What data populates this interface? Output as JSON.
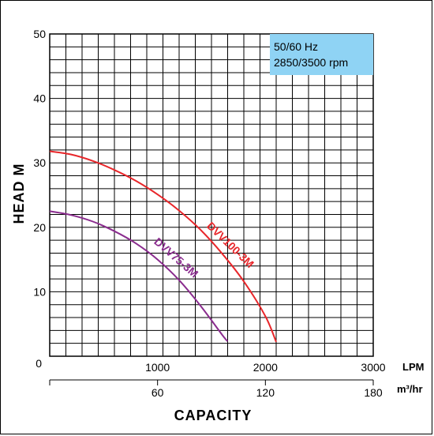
{
  "chart_data": {
    "type": "line",
    "title": "",
    "ylabel": "HEAD M",
    "xlabel": "CAPACITY",
    "x_unit_primary": "LPM",
    "x_unit_secondary": "m³/hr",
    "xlim": [
      0,
      3000
    ],
    "ylim": [
      0,
      50
    ],
    "x_ticks": [
      0,
      1000,
      2000,
      3000
    ],
    "x_tick_labels": [
      "0",
      "1000",
      "2000",
      "3000"
    ],
    "x2_ticks": [
      0,
      60,
      120,
      180
    ],
    "x2_tick_labels": [
      "",
      "60",
      "120",
      "180"
    ],
    "y_ticks": [
      0,
      10,
      20,
      30,
      40,
      50
    ],
    "y_tick_labels": [
      "0",
      "10",
      "20",
      "30",
      "40",
      "50"
    ],
    "grid": true,
    "info_box": {
      "line1": "50/60 Hz",
      "line2": "2850/3500 rpm",
      "color": "#8fd3f4"
    },
    "series": [
      {
        "name": "DVV100-3M",
        "color": "#e8262a",
        "x": [
          0,
          200,
          400,
          600,
          800,
          1000,
          1200,
          1400,
          1600,
          1800,
          2000,
          2100
        ],
        "y": [
          31.8,
          31.3,
          30.3,
          28.9,
          27.2,
          25.1,
          22.6,
          19.6,
          15.9,
          11.6,
          6.2,
          2.2
        ]
      },
      {
        "name": "DVV75-3M",
        "color": "#8a2c8e",
        "x": [
          0,
          200,
          400,
          600,
          800,
          1000,
          1200,
          1400,
          1600,
          1650
        ],
        "y": [
          22.5,
          21.9,
          20.9,
          19.4,
          17.5,
          15.0,
          11.8,
          7.8,
          3.3,
          2.3
        ]
      }
    ]
  }
}
